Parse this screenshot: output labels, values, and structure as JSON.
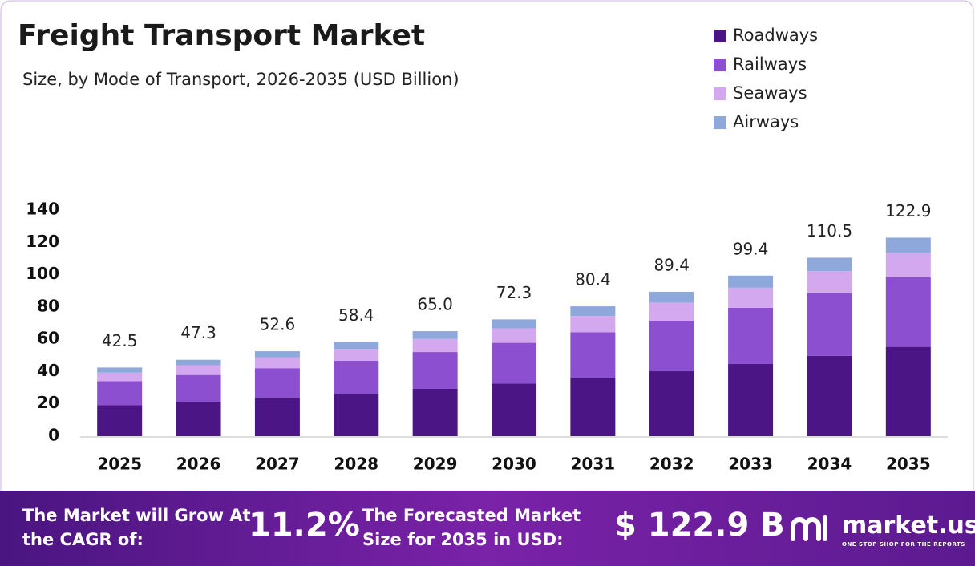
{
  "chart_data": {
    "type": "stacked-bar",
    "title": "Freight Transport Market",
    "subtitle": "Size, by Mode of Transport, 2026-2035 (USD Billion)",
    "categories": [
      "2025",
      "2026",
      "2027",
      "2028",
      "2029",
      "2030",
      "2031",
      "2032",
      "2033",
      "2034",
      "2035"
    ],
    "series": [
      {
        "name": "Roadways",
        "color": "#4b1585",
        "values": [
          19.1,
          21.3,
          23.7,
          26.3,
          29.3,
          32.5,
          36.2,
          40.2,
          44.7,
          49.7,
          55.3
        ]
      },
      {
        "name": "Railways",
        "color": "#8b4fd0",
        "values": [
          14.9,
          16.6,
          18.4,
          20.4,
          22.8,
          25.3,
          28.1,
          31.3,
          34.8,
          38.7,
          43.0
        ]
      },
      {
        "name": "Seaways",
        "color": "#d4a8ee",
        "values": [
          5.3,
          5.9,
          6.6,
          7.3,
          8.1,
          9.0,
          10.1,
          11.2,
          12.4,
          13.8,
          15.4
        ]
      },
      {
        "name": "Airways",
        "color": "#8fa8dc",
        "values": [
          3.2,
          3.5,
          3.9,
          4.4,
          4.8,
          5.5,
          6.0,
          6.7,
          7.5,
          8.3,
          9.2
        ]
      }
    ],
    "totals": [
      42.5,
      47.3,
      52.6,
      58.4,
      65.0,
      72.3,
      80.4,
      89.4,
      99.4,
      110.5,
      122.9
    ],
    "total_labels": [
      "42.5",
      "47.3",
      "52.6",
      "58.4",
      "65.0",
      "72.3",
      "80.4",
      "89.4",
      "99.4",
      "110.5",
      "122.9"
    ],
    "ylim": [
      0,
      140
    ],
    "yticks": [
      0,
      20,
      40,
      60,
      80,
      100,
      120,
      140
    ],
    "grid": false,
    "legend": "top-right"
  },
  "footer": {
    "cagr_text": "The Market will Grow At the CAGR of:",
    "cagr": "11.2%",
    "forecast_text": "The Forecasted Market Size for 2035 in USD:",
    "forecast": "$ 122.9 B",
    "brand": "market.us",
    "tagline": "ONE STOP SHOP FOR THE REPORTS"
  }
}
